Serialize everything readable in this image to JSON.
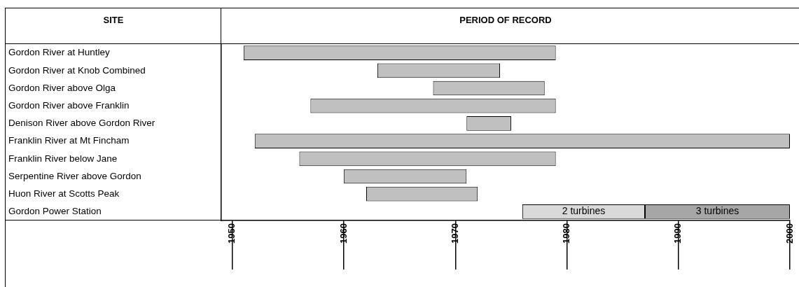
{
  "chart_data": {
    "type": "bar",
    "orientation": "horizontal",
    "title": "PERIOD OF RECORD",
    "ylabel": "SITE",
    "categories": [
      "Gordon River at Huntley",
      "Gordon River at Knob Combined",
      "Gordon River above Olga",
      "Gordon River above Franklin",
      "Denison River above Gordon River",
      "Franklin River at Mt Fincham",
      "Franklin River below Jane",
      "Serpentine River above Gordon",
      "Huon River at Scotts Peak",
      "Gordon Power Station"
    ],
    "series": [
      {
        "color": "#c0c0c0",
        "base": [
          1951,
          1963,
          1968,
          1957,
          1971,
          1952,
          1956,
          1960,
          1962,
          null
        ],
        "values": [
          28,
          11,
          10,
          22,
          4,
          48,
          23,
          11,
          10,
          null
        ]
      },
      {
        "name": "2 turbines",
        "color": "#d9d9d9",
        "base": [
          null,
          null,
          null,
          null,
          null,
          null,
          null,
          null,
          null,
          1976
        ],
        "values": [
          null,
          null,
          null,
          null,
          null,
          null,
          null,
          null,
          null,
          11
        ]
      },
      {
        "name": "3 turbines",
        "color": "#a6a6a6",
        "base": [
          null,
          null,
          null,
          null,
          null,
          null,
          null,
          null,
          null,
          1987
        ],
        "values": [
          null,
          null,
          null,
          null,
          null,
          null,
          null,
          null,
          null,
          13
        ]
      }
    ],
    "xlim": [
      1949,
      2000
    ],
    "xticks": [
      1950,
      1960,
      1970,
      1980,
      1990,
      2000
    ],
    "legend": false
  }
}
